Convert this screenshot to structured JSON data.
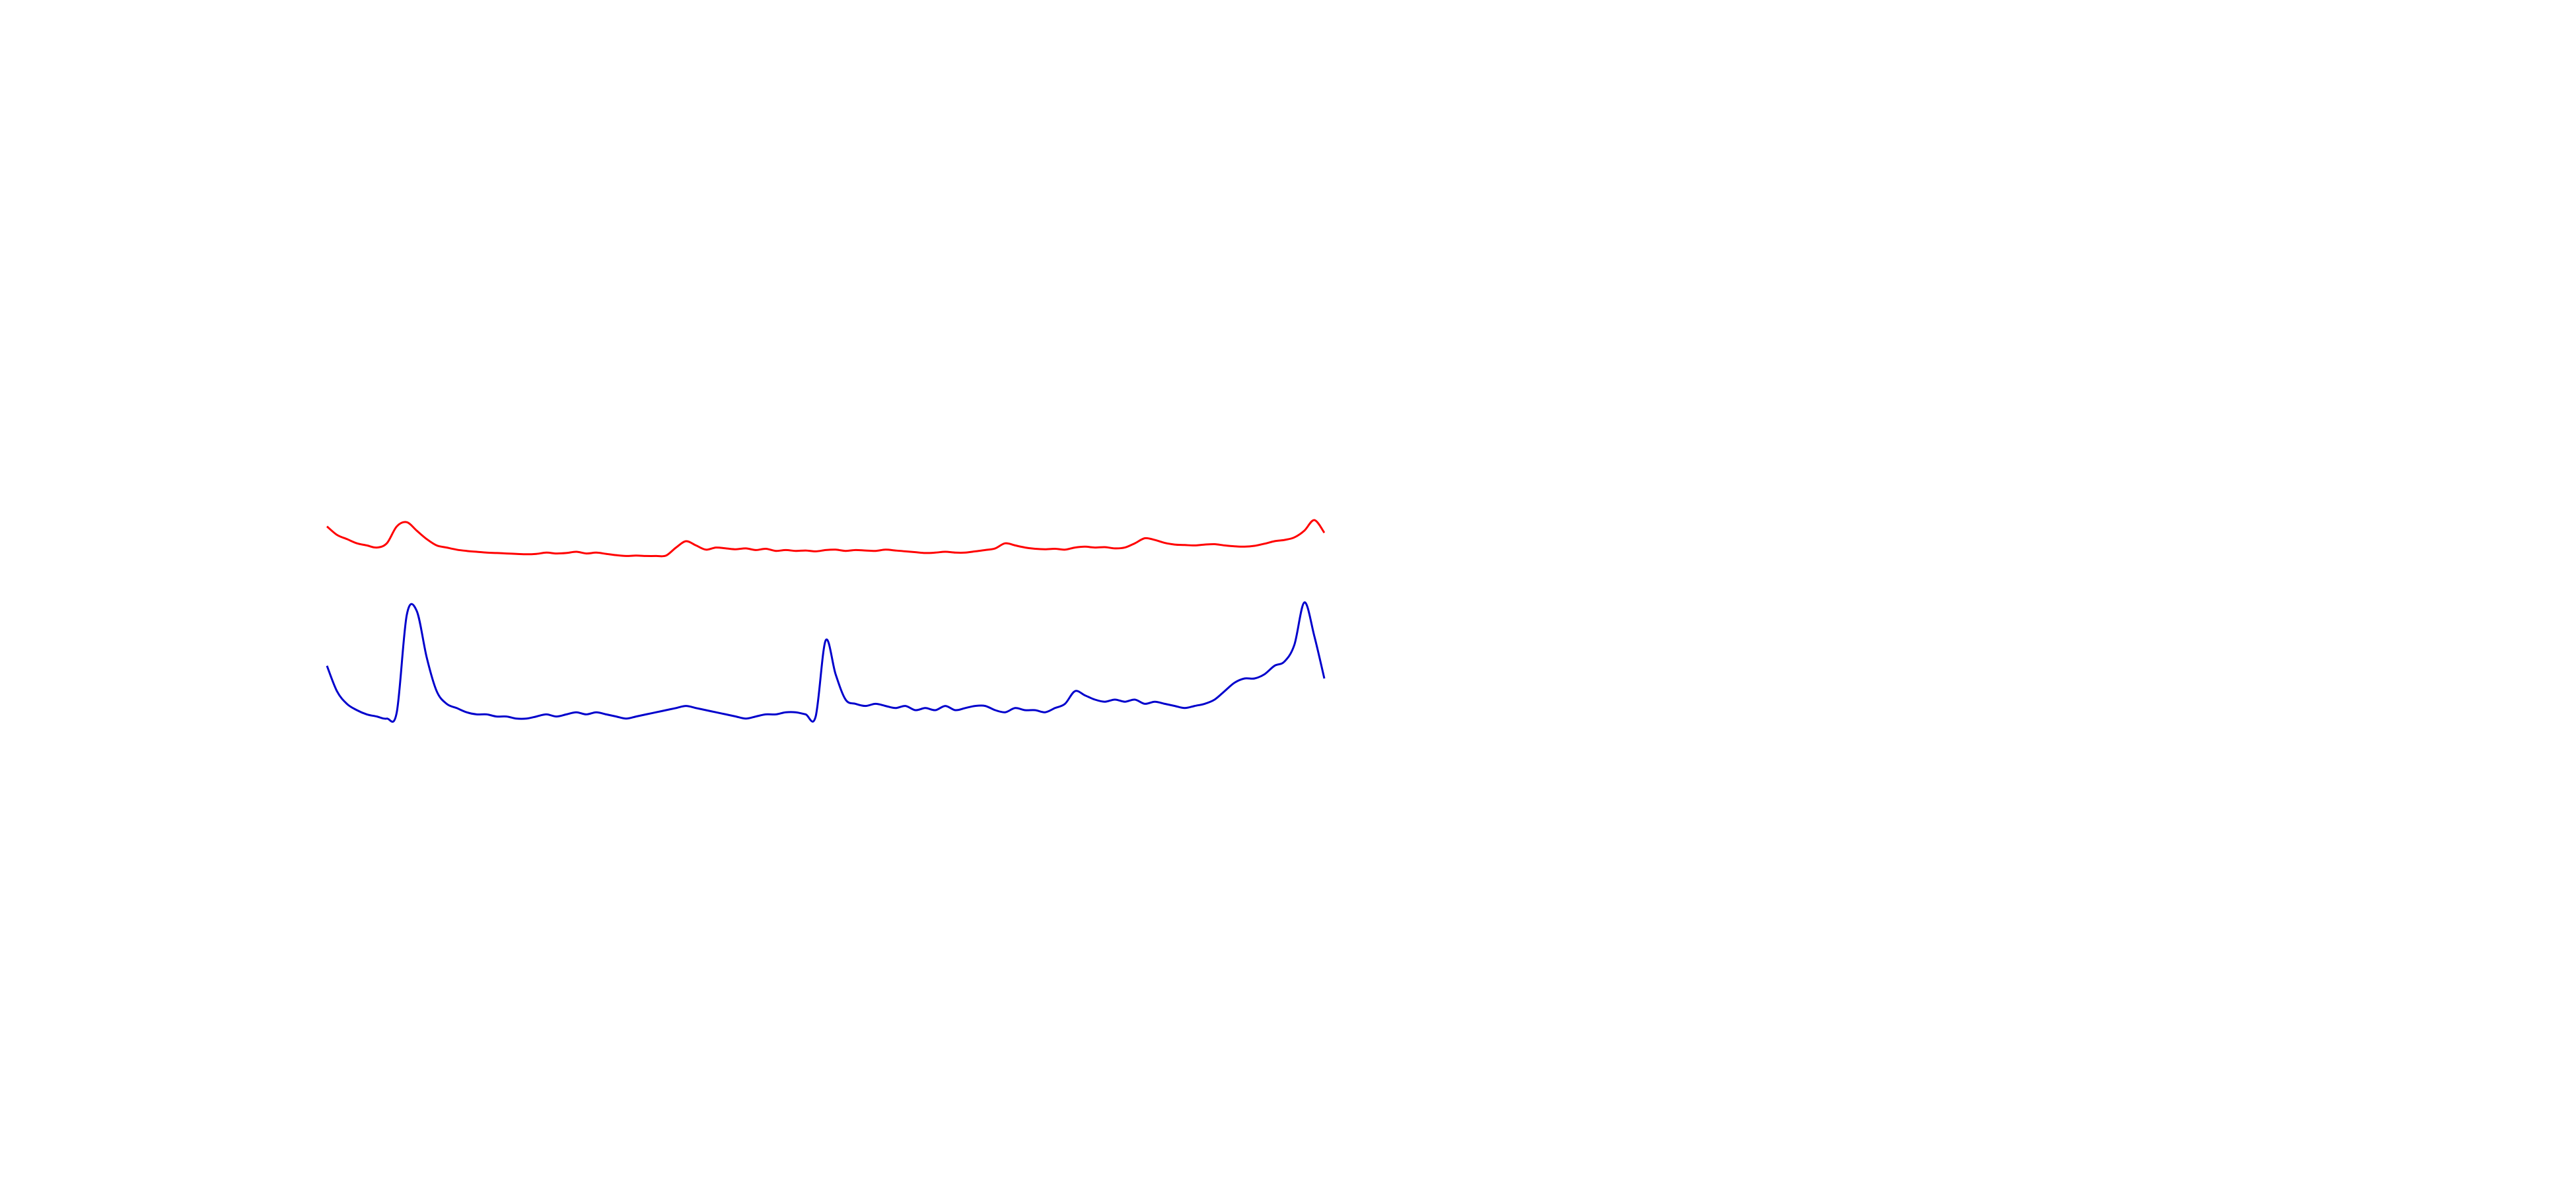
{
  "chart_data": {
    "type": "line",
    "title": "",
    "xlabel": "",
    "ylabel": "",
    "grid": false,
    "xlim": [
      0,
      200
    ],
    "ylim": [
      0,
      100
    ],
    "series": [
      {
        "color": "#ff0000",
        "x": [
          0,
          2,
          4,
          6,
          8,
          10,
          12,
          14,
          16,
          18,
          20,
          22,
          24,
          26,
          28,
          30,
          32,
          34,
          36,
          38,
          40,
          42,
          44,
          46,
          48,
          50,
          52,
          54,
          56,
          58,
          60,
          62,
          64,
          66,
          68,
          70,
          72,
          74,
          76,
          78,
          80,
          82,
          84,
          86,
          88,
          90,
          92,
          94,
          96,
          98,
          100,
          102,
          104,
          106,
          108,
          110,
          112,
          114,
          116,
          118,
          120,
          122,
          124,
          126,
          128,
          130,
          132,
          134,
          136,
          138,
          140,
          142,
          144,
          146,
          148,
          150,
          152,
          154,
          156,
          158,
          160,
          162,
          164,
          166,
          168,
          170,
          172,
          174,
          176,
          178,
          180,
          182,
          184,
          186,
          188,
          190,
          192,
          194,
          196,
          198,
          200
        ],
        "values": [
          91,
          89,
          88,
          87,
          86.5,
          86,
          87,
          91,
          92,
          90,
          88,
          86.5,
          86,
          85.5,
          85.2,
          85,
          84.8,
          84.7,
          84.6,
          84.5,
          84.4,
          84.5,
          84.8,
          84.6,
          84.7,
          85,
          84.6,
          84.8,
          84.5,
          84.2,
          84,
          84.1,
          84,
          84,
          84.1,
          86,
          87.5,
          86.5,
          85.5,
          86,
          85.8,
          85.6,
          85.8,
          85.4,
          85.7,
          85.2,
          85.4,
          85.2,
          85.3,
          85.1,
          85.4,
          85.5,
          85.2,
          85.4,
          85.3,
          85.2,
          85.5,
          85.3,
          85.1,
          84.9,
          84.7,
          84.8,
          85,
          84.8,
          84.8,
          85.1,
          85.4,
          85.8,
          87,
          86.5,
          86,
          85.7,
          85.6,
          85.7,
          85.5,
          86,
          86.2,
          86,
          86.1,
          85.8,
          86,
          87,
          88.2,
          87.8,
          87.1,
          86.7,
          86.6,
          86.5,
          86.7,
          86.8,
          86.5,
          86.3,
          86.2,
          86.4,
          86.9,
          87.5,
          87.8,
          88.4,
          90,
          92.5,
          89.5
        ]
      },
      {
        "color": "#0000cc",
        "x": [
          0,
          2,
          4,
          6,
          8,
          10,
          12,
          14,
          16,
          18,
          20,
          22,
          24,
          26,
          28,
          30,
          32,
          34,
          36,
          38,
          40,
          42,
          44,
          46,
          48,
          50,
          52,
          54,
          56,
          58,
          60,
          62,
          64,
          66,
          68,
          70,
          72,
          74,
          76,
          78,
          80,
          82,
          84,
          86,
          88,
          90,
          92,
          94,
          96,
          98,
          100,
          102,
          104,
          106,
          108,
          110,
          112,
          114,
          116,
          118,
          120,
          122,
          124,
          126,
          128,
          130,
          132,
          134,
          136,
          138,
          140,
          142,
          144,
          146,
          148,
          150,
          152,
          154,
          156,
          158,
          160,
          162,
          164,
          166,
          168,
          170,
          172,
          174,
          176,
          178,
          180,
          182,
          184,
          186,
          188,
          190,
          192,
          194,
          196,
          198,
          200
        ],
        "values": [
          58,
          52,
          49,
          47.5,
          46.5,
          46,
          45.5,
          47,
          70,
          71,
          60,
          52,
          49,
          48,
          47,
          46.5,
          46.5,
          46,
          46,
          45.5,
          45.5,
          46,
          46.5,
          46,
          46.5,
          47,
          46.5,
          47,
          46.5,
          46,
          45.5,
          46,
          46.5,
          47,
          47.5,
          48,
          48.5,
          48,
          47.5,
          47,
          46.5,
          46,
          45.5,
          46,
          46.5,
          46.5,
          47,
          47,
          46.5,
          46,
          64,
          56,
          50,
          49,
          48.5,
          49,
          48.5,
          48,
          48.5,
          47.5,
          48,
          47.5,
          48.5,
          47.5,
          48,
          48.5,
          48.5,
          47.5,
          47,
          48,
          47.5,
          47.5,
          47,
          48,
          49,
          52,
          51,
          50,
          49.5,
          50,
          49.5,
          50,
          49,
          49.5,
          49,
          48.5,
          48,
          48.5,
          49,
          50,
          52,
          54,
          55,
          55,
          56,
          58,
          59,
          63,
          73,
          65,
          55
        ]
      }
    ]
  }
}
